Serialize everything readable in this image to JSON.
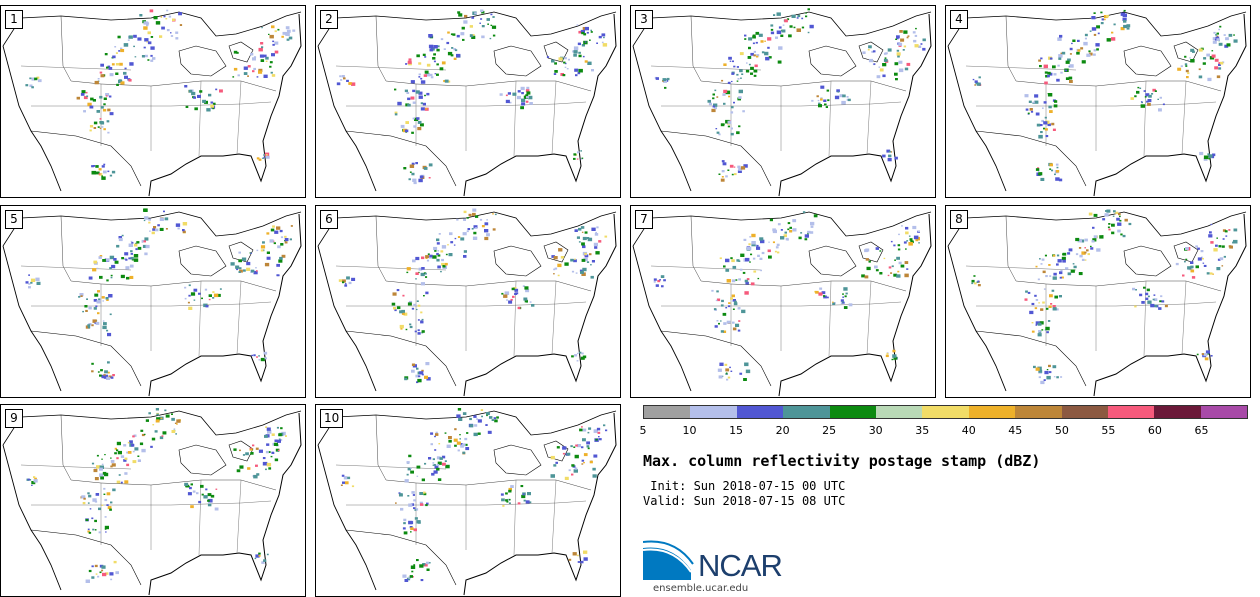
{
  "stamps": [
    {
      "label": "1"
    },
    {
      "label": "2"
    },
    {
      "label": "3"
    },
    {
      "label": "4"
    },
    {
      "label": "5"
    },
    {
      "label": "6"
    },
    {
      "label": "7"
    },
    {
      "label": "8"
    },
    {
      "label": "9"
    },
    {
      "label": "10"
    }
  ],
  "colorbar": {
    "ticks": [
      "5",
      "10",
      "15",
      "20",
      "25",
      "30",
      "35",
      "40",
      "45",
      "50",
      "55",
      "60",
      "65"
    ],
    "colors": [
      "#a0a0a0",
      "#b4bfea",
      "#5157d3",
      "#4e9598",
      "#0c8a10",
      "#b9d9b6",
      "#f1dc67",
      "#eeb12a",
      "#bd8638",
      "#8c5941",
      "#f65a7c",
      "#6b1939",
      "#a84aa8"
    ]
  },
  "title": "Max. column reflectivity postage stamp (dBZ)",
  "init": " Init: Sun 2018-07-15 00 UTC",
  "valid": "Valid: Sun 2018-07-15 08 UTC",
  "logo": {
    "brand": "NCAR",
    "url": "ensemble.ucar.edu",
    "colors": {
      "blue": "#0079c1",
      "navy": "#1d3f6d"
    }
  }
}
